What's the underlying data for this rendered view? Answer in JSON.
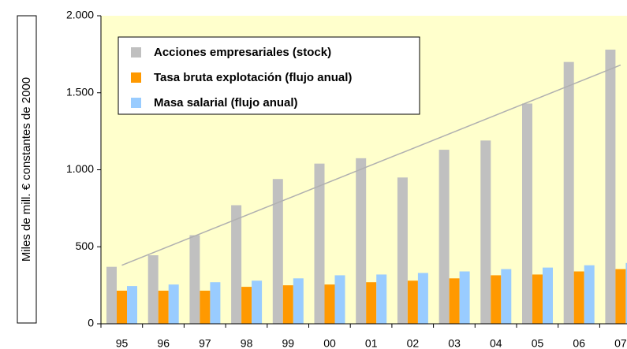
{
  "chart_data": {
    "type": "bar",
    "y_label": "Miles de mill. € constantes de 2000",
    "categories": [
      "95",
      "96",
      "97",
      "98",
      "99",
      "00",
      "01",
      "02",
      "03",
      "04",
      "05",
      "06",
      "07"
    ],
    "series": [
      {
        "name": "Acciones empresariales (stock)",
        "color": "#c0c0c0",
        "values": [
          370,
          445,
          575,
          770,
          940,
          1040,
          1075,
          950,
          1130,
          1190,
          1430,
          1700,
          1780
        ]
      },
      {
        "name": "Tasa bruta explotación (flujo anual)",
        "color": "#ff9900",
        "values": [
          215,
          215,
          215,
          240,
          250,
          255,
          270,
          280,
          295,
          315,
          320,
          340,
          355
        ]
      },
      {
        "name": "Masa salarial (flujo anual)",
        "color": "#99ccff",
        "values": [
          245,
          255,
          270,
          280,
          295,
          315,
          320,
          330,
          340,
          355,
          365,
          380,
          395
        ]
      }
    ],
    "trend_values": [
      380,
      1680
    ],
    "trend_color": "#b0b0b0",
    "ylim": [
      0,
      2000
    ],
    "yticks": [
      0,
      500,
      {
        "value": 1000,
        "label": "1.000"
      },
      {
        "value": 1500,
        "label": "1.500"
      },
      {
        "value": 2000,
        "label": "2.000"
      }
    ],
    "legend": "upper left",
    "background": "#ffffcc"
  }
}
